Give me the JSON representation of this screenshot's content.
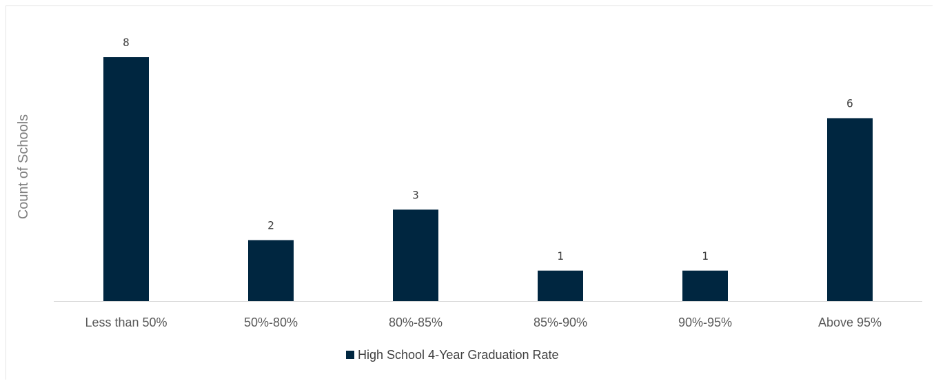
{
  "chart_data": {
    "type": "bar",
    "categories": [
      "Less than 50%",
      "50%-80%",
      "80%-85%",
      "85%-90%",
      "90%-95%",
      "Above 95%"
    ],
    "series": [
      {
        "name": "High School 4-Year Graduation Rate",
        "values": [
          8,
          2,
          3,
          1,
          1,
          6
        ],
        "color": "#002640"
      }
    ],
    "title": "",
    "xlabel": "",
    "ylabel": "Count of Schools",
    "ylim": [
      0,
      8
    ],
    "grid": false,
    "data_labels": true,
    "legend_position": "bottom"
  }
}
